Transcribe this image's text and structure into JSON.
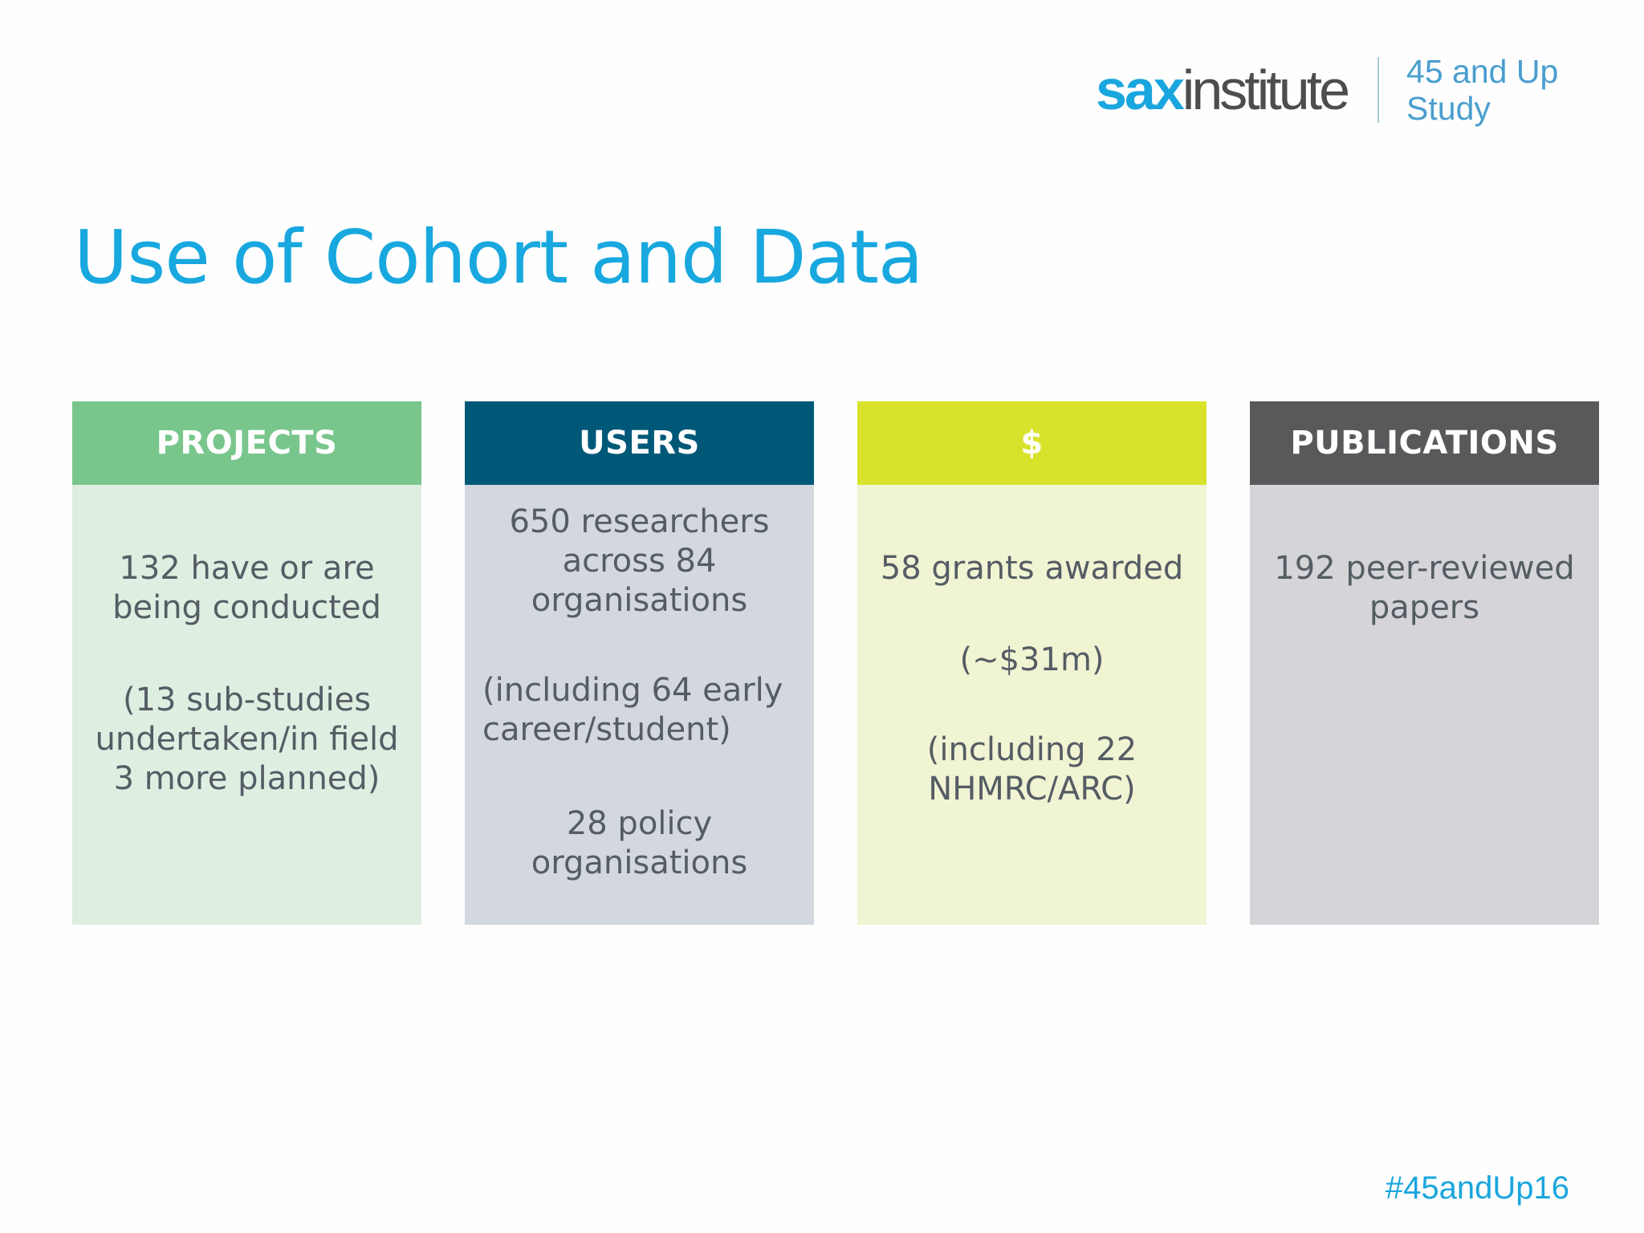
{
  "logo": {
    "brand_bold": "sax",
    "brand_regular": "institute",
    "study_line1": "45 and Up",
    "study_line2": "Study"
  },
  "title": "Use of Cohort and Data",
  "cards": [
    {
      "header": "PROJECTS",
      "lines": [
        "132 have or are\nbeing conducted",
        "(13 sub-studies\nundertaken/in field\n3 more planned)"
      ]
    },
    {
      "header": "USERS",
      "lines": [
        "650 researchers\nacross 84\norganisations",
        "(including 64 early\ncareer/student)",
        "28 policy\norganisations"
      ]
    },
    {
      "header": "$",
      "lines": [
        "58 grants awarded",
        "(~$31m)",
        "(including 22\nNHMRC/ARC)"
      ]
    },
    {
      "header": "PUBLICATIONS",
      "lines": [
        "192 peer-reviewed\npapers"
      ]
    }
  ],
  "hashtag": "#45andUp16",
  "colors": {
    "title": "#18a8df",
    "projects_header": "#79c68d",
    "projects_body": "#deeee1",
    "users_header": "#005878",
    "users_body": "#d3d8de",
    "dollars_header": "#d8e22a",
    "dollars_body": "#f0f4d3",
    "publications_header": "#58595b",
    "publications_body": "#d5d4d8"
  }
}
